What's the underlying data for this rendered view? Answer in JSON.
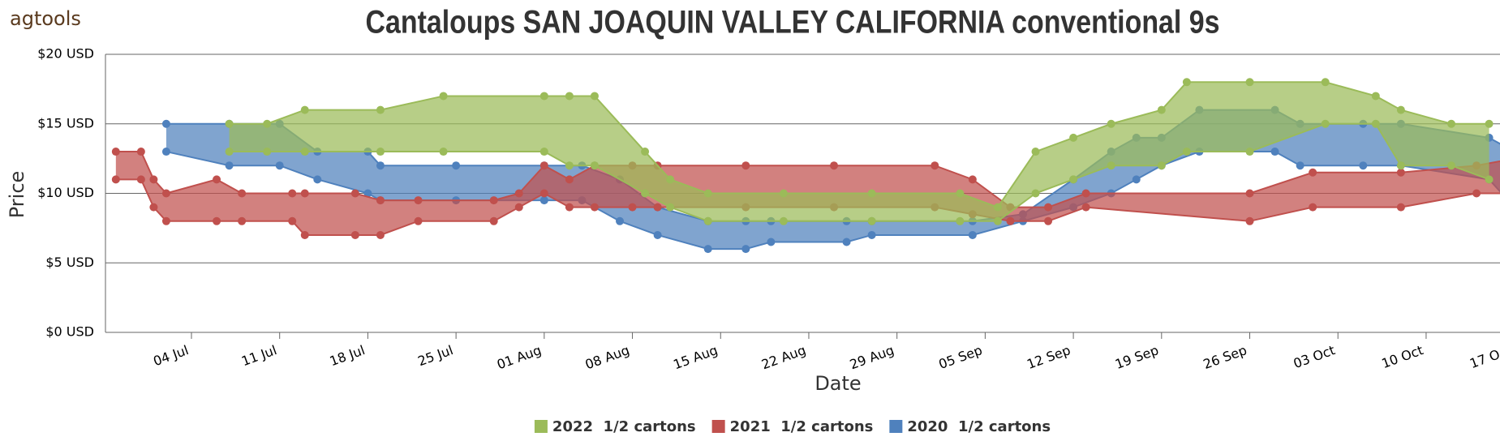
{
  "logo": "agtools",
  "chart_data": {
    "type": "rangearea",
    "title": "Cantaloups SAN JOAQUIN VALLEY CALIFORNIA conventional 9s",
    "xlabel": "Date",
    "ylabel": "Price",
    "xlim": [
      "27 Jun",
      "17 Oct"
    ],
    "xticks": [
      "04 Jul",
      "11 Jul",
      "18 Jul",
      "25 Jul",
      "01 Aug",
      "08 Aug",
      "15 Aug",
      "22 Aug",
      "29 Aug",
      "05 Sep",
      "12 Sep",
      "19 Sep",
      "26 Sep",
      "03 Oct",
      "10 Oct",
      "17 Oct"
    ],
    "ylim": [
      0,
      20
    ],
    "yticks": [
      {
        "value": 0,
        "label": "$0 USD"
      },
      {
        "value": 5,
        "label": "$5 USD"
      },
      {
        "value": 10,
        "label": "$10 USD"
      },
      {
        "value": 15,
        "label": "$15 USD"
      },
      {
        "value": 20,
        "label": "$20 USD"
      }
    ],
    "grid": true,
    "legend": "bottom",
    "series": [
      {
        "name": "2022  1/2 cartons",
        "color": "#9bbb59",
        "x": [
          "07 Jul",
          "10 Jul",
          "13 Jul",
          "19 Jul",
          "24 Jul",
          "01 Aug",
          "03 Aug",
          "05 Aug",
          "09 Aug",
          "11 Aug",
          "14 Aug",
          "20 Aug",
          "27 Aug",
          "03 Sep",
          "06 Sep",
          "09 Sep",
          "12 Sep",
          "15 Sep",
          "19 Sep",
          "21 Sep",
          "26 Sep",
          "02 Oct",
          "06 Oct",
          "08 Oct",
          "12 Oct",
          "15 Oct"
        ],
        "low": [
          13,
          13,
          13,
          13,
          13,
          13,
          12,
          12,
          10,
          9,
          8,
          8,
          8,
          8,
          8,
          10,
          11,
          12,
          12,
          13,
          13,
          15,
          15,
          12,
          12,
          11
        ],
        "high": [
          15,
          15,
          16,
          16,
          17,
          17,
          17,
          17,
          13,
          11,
          10,
          10,
          10,
          10,
          9,
          13,
          14,
          15,
          16,
          18,
          18,
          18,
          17,
          16,
          15,
          15
        ]
      },
      {
        "name": "2021  1/2 cartons",
        "color": "#c0504d",
        "x": [
          "28 Jun",
          "30 Jun",
          "01 Jul",
          "02 Jul",
          "06 Jul",
          "08 Jul",
          "12 Jul",
          "13 Jul",
          "17 Jul",
          "19 Jul",
          "22 Jul",
          "28 Jul",
          "30 Jul",
          "01 Aug",
          "03 Aug",
          "05 Aug",
          "08 Aug",
          "10 Aug",
          "17 Aug",
          "24 Aug",
          "01 Sep",
          "04 Sep",
          "07 Sep",
          "10 Sep",
          "13 Sep",
          "26 Sep",
          "01 Oct",
          "08 Oct",
          "14 Oct",
          "17 Oct"
        ],
        "low": [
          11,
          11,
          9,
          8,
          8,
          8,
          8,
          7,
          7,
          7,
          8,
          8,
          9,
          10,
          9,
          9,
          9,
          9,
          9,
          9,
          9,
          8.5,
          8,
          8,
          9,
          8,
          9,
          9,
          10,
          10
        ],
        "high": [
          13,
          13,
          11,
          10,
          11,
          10,
          10,
          10,
          10,
          9.5,
          9.5,
          9.5,
          10,
          12,
          11,
          12,
          12,
          12,
          12,
          12,
          12,
          11,
          9,
          9,
          10,
          10,
          11.5,
          11.5,
          12,
          12.5
        ]
      },
      {
        "name": "2020  1/2 cartons",
        "color": "#4f81bd",
        "x": [
          "02 Jul",
          "07 Jul",
          "11 Jul",
          "14 Jul",
          "18 Jul",
          "19 Jul",
          "25 Jul",
          "01 Aug",
          "04 Aug",
          "07 Aug",
          "10 Aug",
          "14 Aug",
          "17 Aug",
          "19 Aug",
          "25 Aug",
          "27 Aug",
          "04 Sep",
          "08 Sep",
          "12 Sep",
          "15 Sep",
          "17 Sep",
          "19 Sep",
          "22 Sep",
          "28 Sep",
          "30 Sep",
          "05 Oct",
          "08 Oct",
          "15 Oct",
          "17 Oct"
        ],
        "low": [
          13,
          12,
          12,
          11,
          10,
          9.5,
          9.5,
          9.5,
          9.5,
          8,
          7,
          6,
          6,
          6.5,
          6.5,
          7,
          7,
          8,
          9,
          10,
          11,
          12,
          13,
          13,
          12,
          12,
          12,
          11,
          9
        ],
        "high": [
          15,
          15,
          15,
          13,
          13,
          12,
          12,
          12,
          12,
          11,
          9,
          8,
          8,
          8,
          8,
          8,
          8,
          8.5,
          11,
          13,
          14,
          14,
          16,
          16,
          15,
          15,
          15,
          14,
          13
        ]
      }
    ]
  }
}
